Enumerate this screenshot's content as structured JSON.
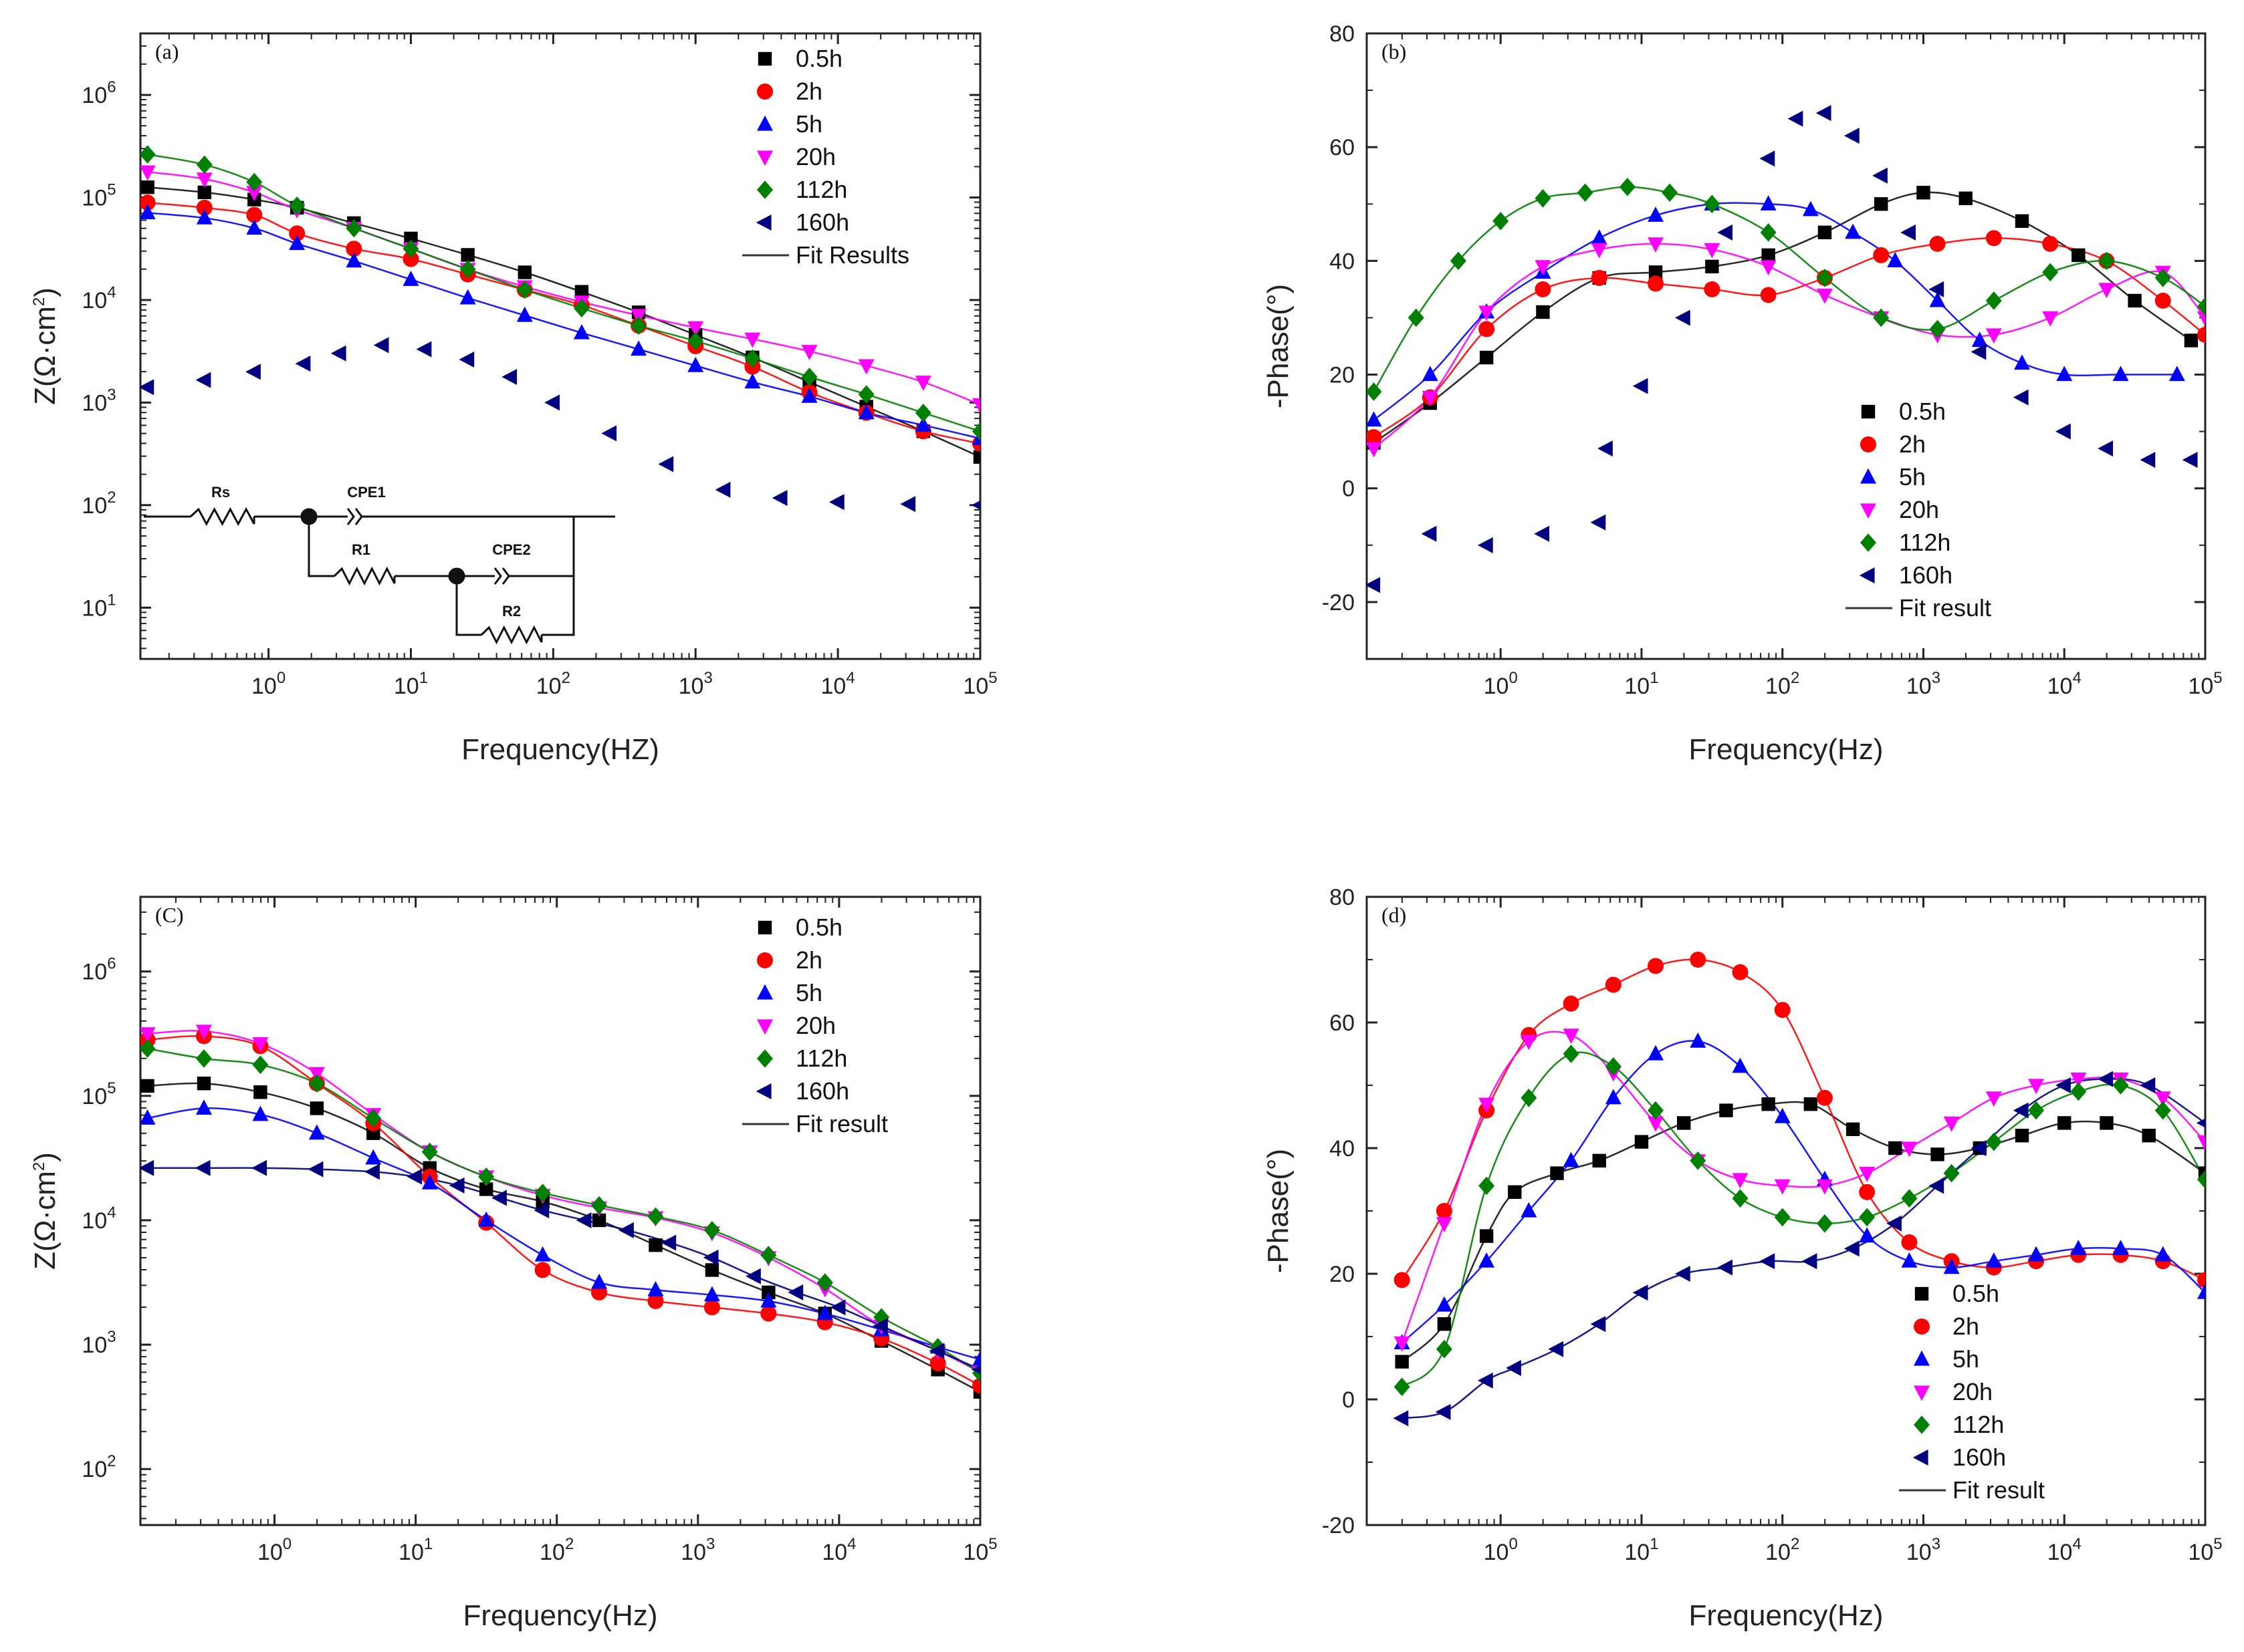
{
  "figure": {
    "colors": {
      "0.5h": "#000000",
      "2h": "#ff0000",
      "5h": "#0000ff",
      "20h": "#ff00ff",
      "112h": "#008000",
      "160h": "#000080",
      "fit": "#222222"
    },
    "markers": {
      "0.5h": "square",
      "2h": "circle",
      "5h": "triangle-up",
      "20h": "triangle-down",
      "112h": "diamond",
      "160h": "triangle-left"
    }
  },
  "chart_data": [
    {
      "id": "a",
      "type": "scatter",
      "panel_label": "(a)",
      "xscale": "log",
      "yscale": "log",
      "xlim_exp": [
        -0.9,
        5
      ],
      "ylim_exp": [
        0.5,
        6.6
      ],
      "x_ticks": [
        "0",
        "1",
        "2",
        "3",
        "4",
        "5"
      ],
      "y_ticks": [
        "1",
        "2",
        "3",
        "4",
        "5",
        "6"
      ],
      "xlabel": "Frequency(HZ)",
      "ylabel_main": "Z(Ω·cm",
      "ylabel_sup": "2",
      "ylabel_end": ")",
      "legend_position": "top-right",
      "legend_fit_label": "Fit Results",
      "series": [
        {
          "name": "0.5h",
          "x": [
            -0.85,
            -0.45,
            -0.1,
            0.2,
            0.6,
            1.0,
            1.4,
            1.8,
            2.2,
            2.6,
            3.0,
            3.4,
            3.8,
            4.2,
            4.6,
            5.0
          ],
          "y": [
            5.1,
            5.05,
            4.98,
            4.9,
            4.75,
            4.6,
            4.44,
            4.27,
            4.08,
            3.88,
            3.66,
            3.44,
            3.2,
            2.96,
            2.72,
            2.47
          ]
        },
        {
          "name": "2h",
          "x": [
            -0.85,
            -0.45,
            -0.1,
            0.2,
            0.6,
            1.0,
            1.4,
            1.8,
            2.2,
            2.6,
            3.0,
            3.4,
            3.8,
            4.2,
            4.6,
            5.0
          ],
          "y": [
            4.95,
            4.9,
            4.83,
            4.65,
            4.5,
            4.4,
            4.25,
            4.1,
            3.95,
            3.75,
            3.55,
            3.35,
            3.1,
            2.9,
            2.72,
            2.6
          ]
        },
        {
          "name": "5h",
          "x": [
            -0.85,
            -0.45,
            -0.1,
            0.2,
            0.6,
            1.0,
            1.4,
            1.8,
            2.2,
            2.6,
            3.0,
            3.4,
            3.8,
            4.2,
            4.6,
            5.0
          ],
          "y": [
            4.85,
            4.8,
            4.7,
            4.55,
            4.38,
            4.2,
            4.02,
            3.85,
            3.68,
            3.52,
            3.36,
            3.2,
            3.06,
            2.9,
            2.78,
            2.65
          ]
        },
        {
          "name": "20h",
          "x": [
            -0.85,
            -0.45,
            -0.1,
            0.2,
            0.6,
            1.0,
            1.4,
            1.8,
            2.2,
            2.6,
            3.0,
            3.4,
            3.8,
            4.2,
            4.6,
            5.0
          ],
          "y": [
            5.25,
            5.18,
            5.05,
            4.88,
            4.7,
            4.5,
            4.3,
            4.13,
            3.98,
            3.85,
            3.73,
            3.62,
            3.5,
            3.36,
            3.2,
            2.98
          ]
        },
        {
          "name": "112h",
          "x": [
            -0.85,
            -0.45,
            -0.1,
            0.2,
            0.6,
            1.0,
            1.4,
            1.8,
            2.2,
            2.6,
            3.0,
            3.4,
            3.8,
            4.2,
            4.6,
            5.0
          ],
          "y": [
            5.42,
            5.32,
            5.15,
            4.92,
            4.7,
            4.5,
            4.3,
            4.1,
            3.92,
            3.75,
            3.6,
            3.43,
            3.25,
            3.08,
            2.9,
            2.72
          ]
        },
        {
          "name": "160h",
          "x": [
            -0.85,
            -0.45,
            -0.1,
            0.25,
            0.5,
            0.8,
            1.1,
            1.4,
            1.7,
            2.0,
            2.4,
            2.8,
            3.2,
            3.6,
            4.0,
            4.5,
            5.0
          ],
          "y": [
            3.15,
            3.22,
            3.3,
            3.38,
            3.48,
            3.56,
            3.52,
            3.42,
            3.25,
            3.0,
            2.7,
            2.4,
            2.15,
            2.07,
            2.03,
            2.01,
            2.0
          ]
        }
      ],
      "circuit": {
        "labels": [
          "Rs",
          "CPE1",
          "R1",
          "CPE2",
          "R2"
        ]
      }
    },
    {
      "id": "b",
      "type": "scatter",
      "panel_label": "(b)",
      "xscale": "log",
      "yscale": "linear",
      "xlim_exp": [
        -0.95,
        5
      ],
      "ylim": [
        -30,
        80
      ],
      "x_ticks": [
        "0",
        "1",
        "2",
        "3",
        "4",
        "5"
      ],
      "y_ticks": [
        "-20",
        "0",
        "20",
        "40",
        "60",
        "80"
      ],
      "xlabel": "Frequency(Hz)",
      "ylabel": "-Phase(°)",
      "legend_position": "center-right",
      "legend_fit_label": "Fit result",
      "series": [
        {
          "name": "0.5h",
          "x": [
            -0.9,
            -0.5,
            -0.1,
            0.3,
            0.7,
            1.1,
            1.5,
            1.9,
            2.3,
            2.7,
            3.0,
            3.3,
            3.7,
            4.1,
            4.5,
            4.9
          ],
          "y": [
            8,
            15,
            23,
            31,
            37,
            38,
            39,
            41,
            45,
            50,
            52,
            51,
            47,
            41,
            33,
            26
          ]
        },
        {
          "name": "2h",
          "x": [
            -0.9,
            -0.5,
            -0.1,
            0.3,
            0.7,
            1.1,
            1.5,
            1.9,
            2.3,
            2.7,
            3.1,
            3.5,
            3.9,
            4.3,
            4.7,
            5.0
          ],
          "y": [
            9,
            16,
            28,
            35,
            37,
            36,
            35,
            34,
            37,
            41,
            43,
            44,
            43,
            40,
            33,
            27
          ]
        },
        {
          "name": "5h",
          "x": [
            -0.9,
            -0.5,
            -0.1,
            0.3,
            0.7,
            1.1,
            1.5,
            1.9,
            2.2,
            2.5,
            2.8,
            3.1,
            3.4,
            3.7,
            4.0,
            4.4,
            4.8
          ],
          "y": [
            12,
            20,
            31,
            38,
            44,
            48,
            50,
            50,
            49,
            45,
            40,
            33,
            26,
            22,
            20,
            20,
            20
          ]
        },
        {
          "name": "20h",
          "x": [
            -0.9,
            -0.5,
            -0.1,
            0.3,
            0.7,
            1.1,
            1.5,
            1.9,
            2.3,
            2.7,
            3.1,
            3.5,
            3.9,
            4.3,
            4.7,
            5.0
          ],
          "y": [
            7,
            16,
            31,
            39,
            42,
            43,
            42,
            39,
            34,
            30,
            27,
            27,
            30,
            35,
            38,
            30
          ]
        },
        {
          "name": "112h",
          "x": [
            -0.9,
            -0.6,
            -0.3,
            0.0,
            0.3,
            0.6,
            0.9,
            1.2,
            1.5,
            1.9,
            2.3,
            2.7,
            3.1,
            3.5,
            3.9,
            4.3,
            4.7,
            5.0
          ],
          "y": [
            17,
            30,
            40,
            47,
            51,
            52,
            53,
            52,
            50,
            45,
            37,
            30,
            28,
            33,
            38,
            40,
            37,
            32
          ]
        },
        {
          "name": "160h",
          "x": [
            -0.9,
            -0.5,
            -0.1,
            0.3,
            0.7,
            0.75,
            1.0,
            1.3,
            1.6,
            1.9,
            2.1,
            2.3,
            2.5,
            2.7,
            2.9,
            3.1,
            3.4,
            3.7,
            4.0,
            4.3,
            4.6,
            4.9
          ],
          "y": [
            -17,
            -8,
            -10,
            -8,
            -6,
            7,
            18,
            30,
            45,
            58,
            65,
            66,
            62,
            55,
            45,
            35,
            24,
            16,
            10,
            7,
            5,
            5
          ]
        }
      ]
    },
    {
      "id": "c",
      "type": "scatter",
      "panel_label": "(C)",
      "xscale": "log",
      "yscale": "log",
      "xlim_exp": [
        -0.95,
        5
      ],
      "ylim_exp": [
        1.55,
        6.6
      ],
      "x_ticks": [
        "0",
        "1",
        "2",
        "3",
        "4",
        "5"
      ],
      "y_ticks": [
        "2",
        "3",
        "4",
        "5",
        "6"
      ],
      "xlabel": "Frequency(Hz)",
      "ylabel_main": "Z(Ω·cm",
      "ylabel_sup": "2",
      "ylabel_end": ")",
      "legend_position": "top-right",
      "legend_fit_label": "Fit result",
      "series": [
        {
          "name": "0.5h",
          "x": [
            -0.9,
            -0.5,
            -0.1,
            0.3,
            0.7,
            1.1,
            1.5,
            1.9,
            2.3,
            2.7,
            3.1,
            3.5,
            3.9,
            4.3,
            4.7,
            5.0
          ],
          "y": [
            5.08,
            5.1,
            5.03,
            4.9,
            4.7,
            4.42,
            4.25,
            4.15,
            4.0,
            3.8,
            3.6,
            3.42,
            3.25,
            3.03,
            2.8,
            2.62
          ]
        },
        {
          "name": "2h",
          "x": [
            -0.9,
            -0.5,
            -0.1,
            0.3,
            0.7,
            1.1,
            1.5,
            1.9,
            2.3,
            2.7,
            3.1,
            3.5,
            3.9,
            4.3,
            4.7,
            5.0
          ],
          "y": [
            5.45,
            5.48,
            5.4,
            5.1,
            4.78,
            4.35,
            3.98,
            3.6,
            3.42,
            3.35,
            3.3,
            3.25,
            3.18,
            3.05,
            2.85,
            2.67
          ]
        },
        {
          "name": "5h",
          "x": [
            -0.9,
            -0.5,
            -0.1,
            0.3,
            0.7,
            1.1,
            1.5,
            1.9,
            2.3,
            2.7,
            3.1,
            3.5,
            3.9,
            4.3,
            4.7,
            5.0
          ],
          "y": [
            4.82,
            4.9,
            4.85,
            4.7,
            4.5,
            4.3,
            4.0,
            3.72,
            3.5,
            3.44,
            3.4,
            3.35,
            3.25,
            3.12,
            2.98,
            2.88
          ]
        },
        {
          "name": "20h",
          "x": [
            -0.9,
            -0.5,
            -0.1,
            0.3,
            0.7,
            1.1,
            1.5,
            1.9,
            2.3,
            2.7,
            3.1,
            3.5,
            3.9,
            4.3,
            4.7,
            5.0
          ],
          "y": [
            5.5,
            5.52,
            5.42,
            5.18,
            4.85,
            4.55,
            4.35,
            4.2,
            4.1,
            4.02,
            3.9,
            3.7,
            3.45,
            3.15,
            2.95,
            2.78
          ]
        },
        {
          "name": "112h",
          "x": [
            -0.9,
            -0.5,
            -0.1,
            0.3,
            0.7,
            1.1,
            1.5,
            1.9,
            2.3,
            2.7,
            3.1,
            3.5,
            3.9,
            4.3,
            4.7,
            5.0
          ],
          "y": [
            5.38,
            5.3,
            5.25,
            5.1,
            4.82,
            4.55,
            4.35,
            4.22,
            4.12,
            4.03,
            3.92,
            3.72,
            3.5,
            3.22,
            2.98,
            2.77
          ]
        },
        {
          "name": "160h",
          "x": [
            -0.9,
            -0.5,
            -0.1,
            0.3,
            0.7,
            1.0,
            1.3,
            1.6,
            1.9,
            2.2,
            2.5,
            2.8,
            3.1,
            3.4,
            3.7,
            4.0,
            4.3,
            4.7,
            5.0
          ],
          "y": [
            4.42,
            4.42,
            4.42,
            4.41,
            4.39,
            4.35,
            4.28,
            4.18,
            4.08,
            4.0,
            3.92,
            3.82,
            3.7,
            3.55,
            3.42,
            3.3,
            3.15,
            2.95,
            2.8
          ]
        }
      ]
    },
    {
      "id": "d",
      "type": "scatter",
      "panel_label": "(d)",
      "xscale": "log",
      "yscale": "linear",
      "xlim_exp": [
        -0.95,
        5
      ],
      "ylim": [
        -20,
        80
      ],
      "x_ticks": [
        "0",
        "1",
        "2",
        "3",
        "4",
        "5"
      ],
      "y_ticks": [
        "-20",
        "0",
        "20",
        "40",
        "60",
        "80"
      ],
      "xlabel": "Frequency(Hz)",
      "ylabel": "-Phase(°)",
      "legend_position": "bottom-right",
      "legend_fit_label": "Fit result",
      "series": [
        {
          "name": "0.5h",
          "x": [
            -0.7,
            -0.4,
            -0.1,
            0.1,
            0.4,
            0.7,
            1.0,
            1.3,
            1.6,
            1.9,
            2.2,
            2.5,
            2.8,
            3.1,
            3.4,
            3.7,
            4.0,
            4.3,
            4.6,
            5.0
          ],
          "y": [
            6,
            12,
            26,
            33,
            36,
            38,
            41,
            44,
            46,
            47,
            47,
            43,
            40,
            39,
            40,
            42,
            44,
            44,
            42,
            36
          ]
        },
        {
          "name": "2h",
          "x": [
            -0.7,
            -0.4,
            -0.1,
            0.2,
            0.5,
            0.8,
            1.1,
            1.4,
            1.7,
            2.0,
            2.3,
            2.6,
            2.9,
            3.2,
            3.5,
            3.8,
            4.1,
            4.4,
            4.7,
            5.0
          ],
          "y": [
            19,
            30,
            46,
            58,
            63,
            66,
            69,
            70,
            68,
            62,
            48,
            33,
            25,
            22,
            21,
            22,
            23,
            23,
            22,
            19
          ]
        },
        {
          "name": "5h",
          "x": [
            -0.7,
            -0.4,
            -0.1,
            0.2,
            0.5,
            0.8,
            1.1,
            1.4,
            1.7,
            2.0,
            2.3,
            2.6,
            2.9,
            3.2,
            3.5,
            3.8,
            4.1,
            4.4,
            4.7,
            5.0
          ],
          "y": [
            9,
            15,
            22,
            30,
            38,
            48,
            55,
            57,
            53,
            45,
            35,
            26,
            22,
            21,
            22,
            23,
            24,
            24,
            23,
            17
          ]
        },
        {
          "name": "20h",
          "x": [
            -0.7,
            -0.4,
            -0.1,
            0.2,
            0.5,
            0.8,
            1.1,
            1.4,
            1.7,
            2.0,
            2.3,
            2.6,
            2.9,
            3.2,
            3.5,
            3.8,
            4.1,
            4.4,
            4.7,
            5.0
          ],
          "y": [
            9,
            28,
            47,
            57,
            58,
            52,
            44,
            38,
            35,
            34,
            34,
            36,
            40,
            44,
            48,
            50,
            51,
            51,
            48,
            41
          ]
        },
        {
          "name": "112h",
          "x": [
            -0.7,
            -0.4,
            -0.1,
            0.2,
            0.5,
            0.8,
            1.1,
            1.4,
            1.7,
            2.0,
            2.3,
            2.6,
            2.9,
            3.2,
            3.5,
            3.8,
            4.1,
            4.4,
            4.7,
            5.0
          ],
          "y": [
            2,
            8,
            34,
            48,
            55,
            53,
            46,
            38,
            32,
            29,
            28,
            29,
            32,
            36,
            41,
            46,
            49,
            50,
            46,
            35
          ]
        },
        {
          "name": "160h",
          "x": [
            -0.7,
            -0.4,
            -0.1,
            0.1,
            0.4,
            0.7,
            1.0,
            1.3,
            1.6,
            1.9,
            2.2,
            2.5,
            2.8,
            3.1,
            3.4,
            3.7,
            4.0,
            4.3,
            4.6,
            5.0
          ],
          "y": [
            -3,
            -2,
            3,
            5,
            8,
            12,
            17,
            20,
            21,
            22,
            22,
            24,
            28,
            34,
            40,
            46,
            50,
            51,
            50,
            44
          ]
        }
      ]
    }
  ]
}
